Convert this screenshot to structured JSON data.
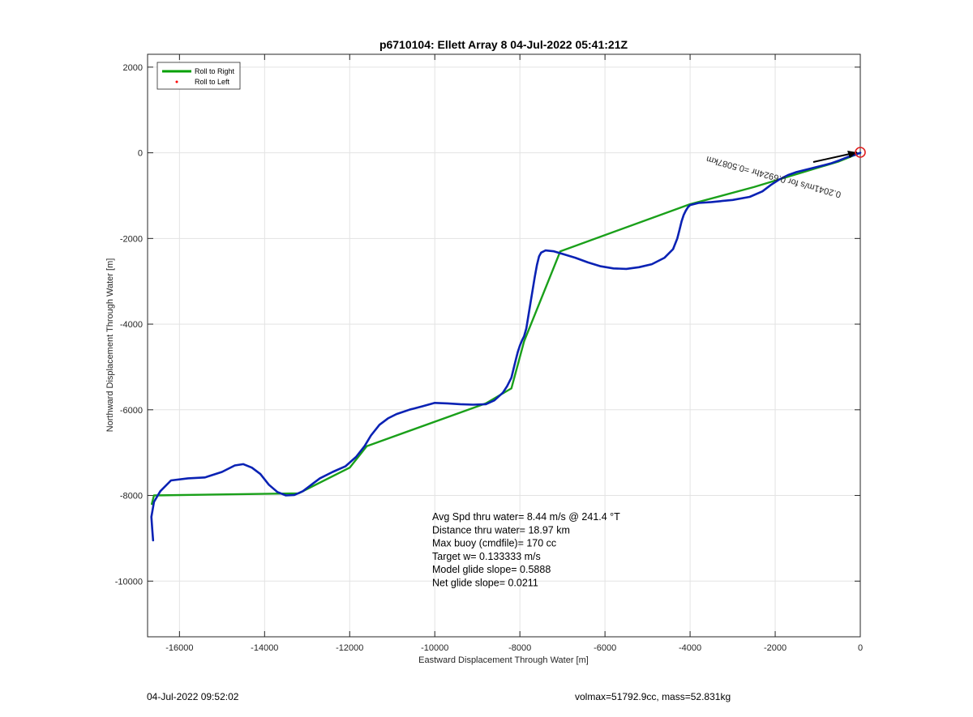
{
  "chart_data": {
    "type": "line",
    "title": "p6710104: Ellett Array 8 04-Jul-2022 05:41:21Z",
    "xlabel": "Eastward Displacement Through Water [m]",
    "ylabel": "Northward Displacement Through Water [m]",
    "xlim": [
      -16750,
      0
    ],
    "ylim": [
      -11300,
      2300
    ],
    "xticks": [
      -16000,
      -14000,
      -12000,
      -10000,
      -8000,
      -6000,
      -4000,
      -2000,
      0
    ],
    "yticks": [
      2000,
      0,
      -2000,
      -4000,
      -6000,
      -8000,
      -10000
    ],
    "grid": true,
    "legend_position": "top-left",
    "legend": [
      {
        "label": "Roll to Right",
        "color": "#00a000"
      },
      {
        "label": "Roll to Left",
        "color": "#ff0000"
      }
    ],
    "series": [
      {
        "name": "Roll to Right",
        "color": "#1aa01a",
        "x": [
          -16650,
          -16600,
          -13200,
          -12000,
          -11600,
          -8800,
          -8200,
          -7900,
          -7050,
          -4000,
          -2500,
          -1500,
          -500,
          0
        ],
        "y": [
          -8200,
          -8000,
          -7950,
          -7350,
          -6850,
          -5850,
          -5500,
          -4400,
          -2300,
          -1200,
          -800,
          -500,
          -200,
          0
        ]
      },
      {
        "name": "",
        "color": "#0a22b4",
        "x": [
          -16620,
          -16640,
          -16660,
          -16600,
          -16450,
          -16200,
          -15800,
          -15400,
          -15000,
          -14700,
          -14500,
          -14300,
          -14100,
          -13900,
          -13700,
          -13500,
          -13300,
          -13100,
          -12900,
          -12700,
          -12400,
          -12100,
          -11850,
          -11650,
          -11500,
          -11300,
          -11100,
          -10900,
          -10600,
          -10300,
          -10000,
          -9700,
          -9400,
          -9100,
          -8800,
          -8600,
          -8400,
          -8300,
          -8200,
          -8150,
          -8100,
          -8050,
          -8000,
          -7950,
          -7900,
          -7850,
          -7800,
          -7750,
          -7700,
          -7650,
          -7600,
          -7550,
          -7500,
          -7400,
          -7200,
          -7000,
          -6700,
          -6400,
          -6100,
          -5800,
          -5500,
          -5200,
          -4900,
          -4600,
          -4400,
          -4300,
          -4250,
          -4200,
          -4150,
          -4100,
          -4050,
          -4000,
          -3800,
          -3500,
          -3000,
          -2600,
          -2300,
          -2100,
          -1900,
          -1700,
          -1500,
          -1300,
          -1100,
          -900,
          -700,
          -500,
          -300,
          -100,
          0
        ],
        "y": [
          -9050,
          -8800,
          -8500,
          -8150,
          -7900,
          -7650,
          -7600,
          -7580,
          -7450,
          -7300,
          -7270,
          -7350,
          -7500,
          -7750,
          -7920,
          -8000,
          -7990,
          -7900,
          -7750,
          -7600,
          -7450,
          -7320,
          -7100,
          -6850,
          -6600,
          -6350,
          -6200,
          -6100,
          -6000,
          -5920,
          -5840,
          -5850,
          -5870,
          -5880,
          -5870,
          -5780,
          -5600,
          -5450,
          -5250,
          -5050,
          -4850,
          -4650,
          -4500,
          -4380,
          -4280,
          -4100,
          -3800,
          -3500,
          -3200,
          -2900,
          -2620,
          -2420,
          -2330,
          -2280,
          -2300,
          -2360,
          -2450,
          -2560,
          -2650,
          -2700,
          -2710,
          -2670,
          -2600,
          -2450,
          -2250,
          -2000,
          -1800,
          -1600,
          -1450,
          -1350,
          -1270,
          -1220,
          -1170,
          -1150,
          -1100,
          -1030,
          -900,
          -750,
          -620,
          -520,
          -450,
          -400,
          -350,
          -300,
          -250,
          -180,
          -100,
          -40,
          0
        ]
      }
    ],
    "annotations": [
      {
        "label": "Avg Spd thru water=  8.44 m/s @ 241.4 °T"
      },
      {
        "label": "Distance thru water= 18.97 km"
      },
      {
        "label": "Max buoy (cmdfile)= 170 cc"
      },
      {
        "label": "Target w= 0.133333 m/s"
      },
      {
        "label": "Model glide slope= 0.5888"
      },
      {
        "label": "Net glide slope= 0.0211"
      }
    ],
    "current_vector_label": "0.2041m/s for 0.6924hr =0.5087km"
  },
  "footer": {
    "timestamp": "04-Jul-2022 09:52:02",
    "mass_info": "volmax=51792.9cc, mass=52.831kg"
  }
}
